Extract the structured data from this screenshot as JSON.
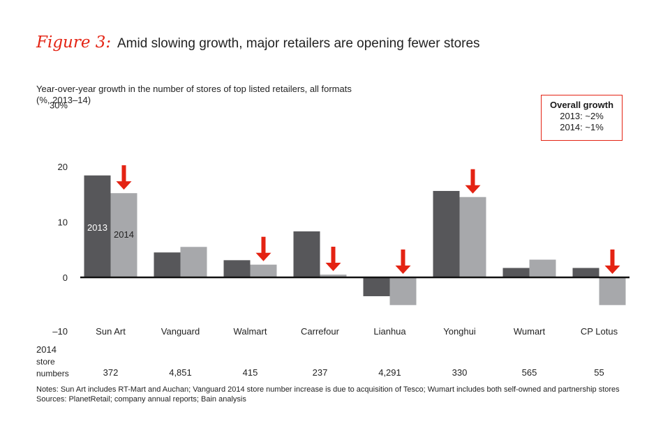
{
  "figure": {
    "label": "Figure 3:",
    "title": "Amid slowing growth, major retailers are opening fewer stores"
  },
  "subtitle": {
    "line1": "Year-over-year growth in the number of stores of top listed retailers, all formats",
    "line2": "(%, 2013–14)"
  },
  "overall_growth": {
    "heading": "Overall growth",
    "line_2013": "2013: ~2%",
    "line_2014": "2014: ~1%"
  },
  "store_numbers_label": [
    "2014",
    "store",
    "numbers"
  ],
  "notes": {
    "line1": "Notes: Sun Art includes RT-Mart and Auchan; Vanguard 2014 store number increase is due to acquisition of Tesco; Wumart includes both self-owned and partnership stores",
    "line2": "Sources: PlanetRetail; company annual reports; Bain analysis"
  },
  "colors": {
    "series_2013": "#57575a",
    "series_2014": "#a7a8ab",
    "arrow": "#e42313",
    "accent": "#e42313"
  },
  "chart_data": {
    "type": "bar",
    "title": "Amid slowing growth, major retailers are opening fewer stores",
    "ylabel": "Year-over-year growth in the number of stores of top listed retailers, all formats (%, 2013–14)",
    "ylim": [
      -10,
      30
    ],
    "yticks": [
      -10,
      0,
      10,
      20
    ],
    "ytick_labels": [
      "–10",
      "0",
      "10",
      "20"
    ],
    "ytop_label": "30%",
    "grid": false,
    "categories": [
      "Sun Art",
      "Vanguard",
      "Walmart",
      "Carrefour",
      "Lianhua",
      "Yonghui",
      "Wumart",
      "CP Lotus"
    ],
    "series": [
      {
        "name": "2013",
        "values": [
          18.4,
          4.5,
          3.1,
          8.3,
          -3.4,
          15.6,
          1.7,
          1.7
        ]
      },
      {
        "name": "2014",
        "values": [
          15.2,
          5.5,
          2.3,
          0.5,
          -5.0,
          14.5,
          3.2,
          -5.0
        ]
      }
    ],
    "store_numbers_2014": [
      "372",
      "4,851",
      "415",
      "237",
      "4,291",
      "330",
      "565",
      "55"
    ],
    "decline_arrows": [
      true,
      false,
      true,
      true,
      true,
      true,
      false,
      true
    ]
  }
}
